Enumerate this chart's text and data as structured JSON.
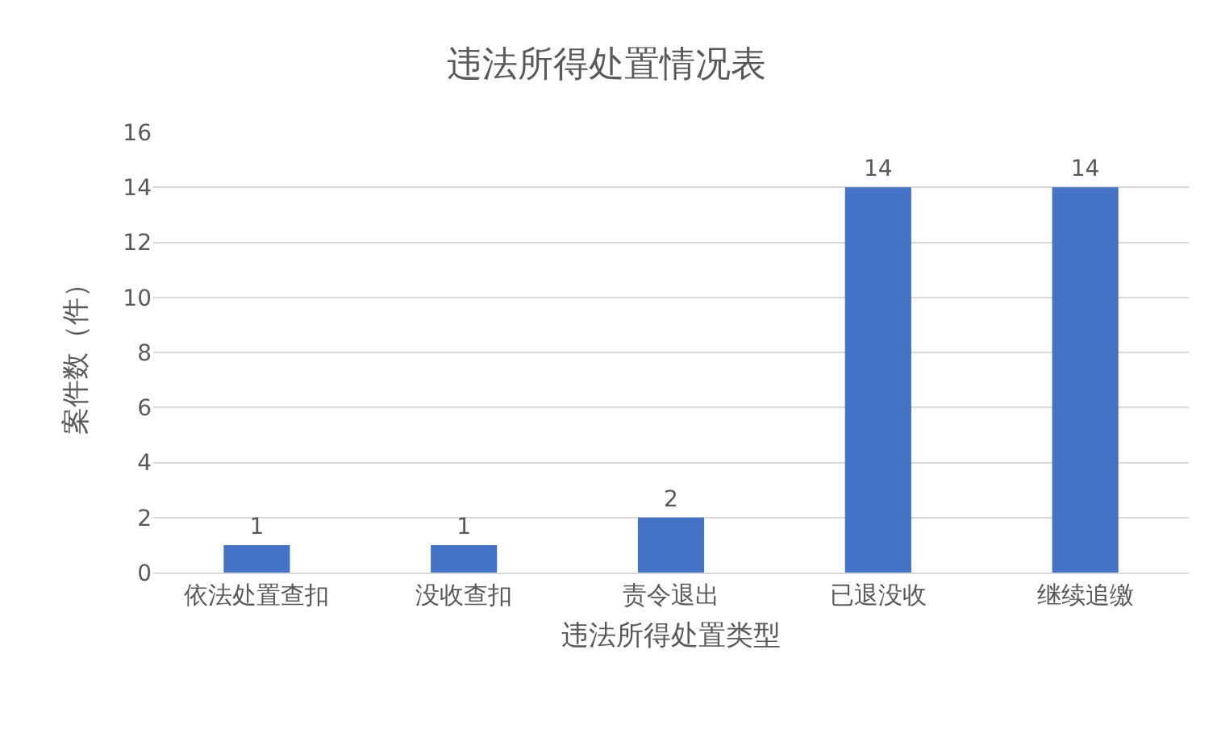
{
  "chart_data": {
    "type": "bar",
    "title": "违法所得处置情况表",
    "xlabel": "违法所得处置类型",
    "ylabel": "案件数（件）",
    "categories": [
      "依法处置查扣",
      "没收查扣",
      "责令退出",
      "已退没收",
      "继续追缴"
    ],
    "values": [
      1,
      1,
      2,
      14,
      14
    ],
    "color": "#4472c4",
    "ylim": [
      0,
      16
    ],
    "yticks": [
      0,
      2,
      4,
      6,
      8,
      10,
      12,
      14,
      16
    ],
    "grid": "y",
    "data_labels": true
  }
}
